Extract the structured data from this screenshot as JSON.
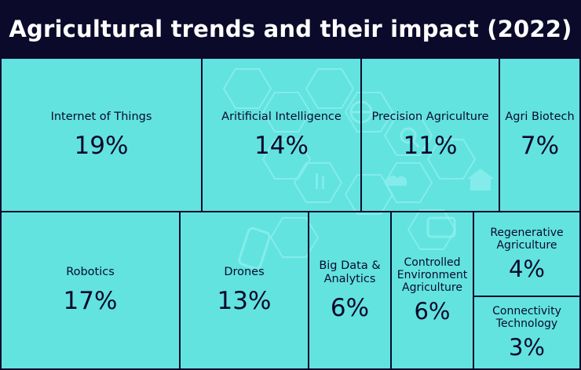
{
  "title": "Agricultural trends and their impact (2022)",
  "colors": {
    "header_bg": "#0c0a2a",
    "tile_fill": "#62e3e0",
    "border": "#0c0a2a",
    "text": "#0c0a2a"
  },
  "chart_data": {
    "type": "treemap",
    "title": "Agricultural trends and their impact (2022)",
    "unit": "%",
    "items": [
      {
        "label": "Internet of Things",
        "value": 19,
        "display": "19%"
      },
      {
        "label": "Aritificial Intelligence",
        "value": 14,
        "display": "14%"
      },
      {
        "label": "Precision Agriculture",
        "value": 11,
        "display": "11%"
      },
      {
        "label": "Agri Biotech",
        "value": 7,
        "display": "7%"
      },
      {
        "label": "Robotics",
        "value": 17,
        "display": "17%"
      },
      {
        "label": "Drones",
        "value": 13,
        "display": "13%"
      },
      {
        "label": "Big Data & Analytics",
        "value": 6,
        "display": "6%"
      },
      {
        "label": "Controlled Environment Agriculture",
        "value": 6,
        "display": "6%"
      },
      {
        "label": "Regenerative Agriculture",
        "value": 4,
        "display": "4%"
      },
      {
        "label": "Connectivity Technology",
        "value": 3,
        "display": "3%"
      }
    ]
  }
}
